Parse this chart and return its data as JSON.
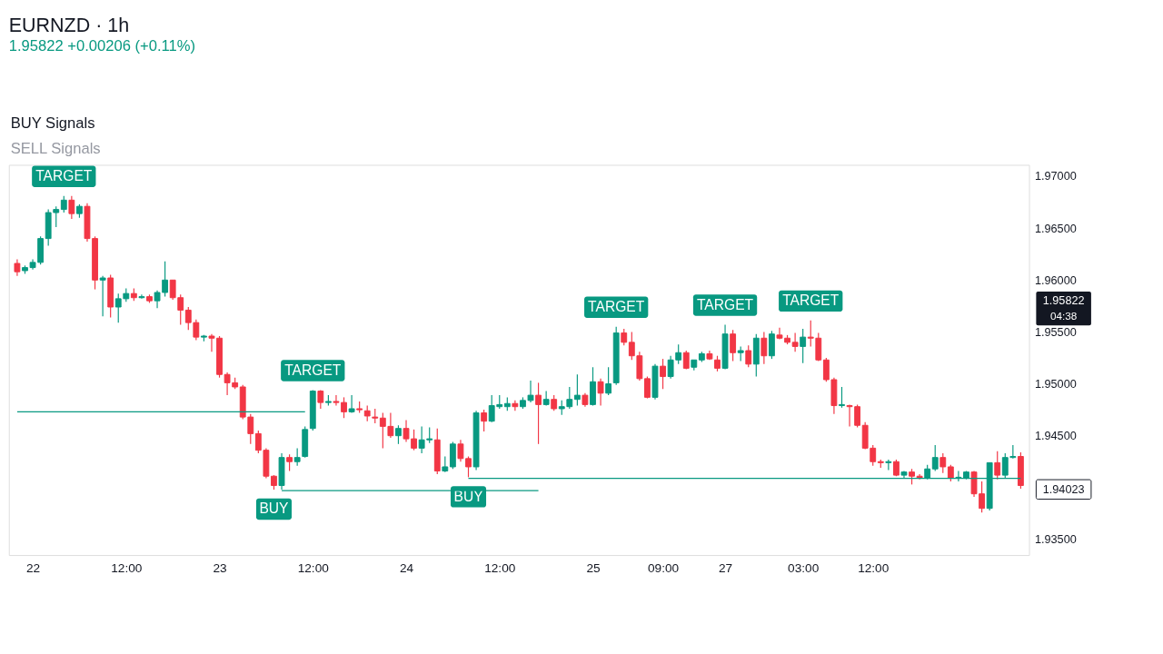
{
  "chart_data": {
    "type": "candlestick",
    "title": "EURNZD · 1h",
    "subtitle": "1.95822 +0.00206 (+0.11%)",
    "categories": [
      null,
      null,
      "22",
      null,
      null,
      null,
      null,
      null,
      null,
      null,
      null,
      null,
      null,
      null,
      "12:00",
      null,
      null,
      null,
      null,
      null,
      null,
      null,
      null,
      null,
      null,
      null,
      "23",
      null,
      null,
      null,
      null,
      null,
      null,
      null,
      null,
      null,
      null,
      null,
      "12:00",
      null,
      null,
      null,
      null,
      null,
      null,
      null,
      null,
      null,
      null,
      null,
      "24",
      null,
      null,
      null,
      null,
      null,
      null,
      null,
      null,
      null,
      null,
      null,
      "12:00",
      null,
      null,
      null,
      null,
      null,
      null,
      null,
      null,
      null,
      null,
      null,
      "25",
      null,
      null,
      null,
      null,
      null,
      null,
      null,
      null,
      "09:00",
      null,
      null,
      null,
      null,
      null,
      null,
      null,
      "27",
      null,
      null,
      null,
      null,
      null,
      null,
      null,
      null,
      null,
      "03:00",
      null,
      null,
      null,
      null,
      null,
      null,
      null,
      null,
      "12:00",
      null,
      null,
      null,
      null,
      null,
      null,
      null,
      null,
      null,
      null,
      null,
      null,
      null,
      null,
      null,
      null,
      null,
      null,
      null
    ],
    "ohlc": [
      [
        1.9616,
        1.962,
        1.9604,
        1.9608
      ],
      [
        1.9609,
        1.9614,
        1.9606,
        1.9612
      ],
      [
        1.9612,
        1.962,
        1.961,
        1.9617
      ],
      [
        1.9617,
        1.9642,
        1.9615,
        1.964
      ],
      [
        1.964,
        1.9668,
        1.9633,
        1.9665
      ],
      [
        1.9665,
        1.9671,
        1.9651,
        1.9668
      ],
      [
        1.9668,
        1.9681,
        1.9665,
        1.9677
      ],
      [
        1.9677,
        1.9681,
        1.9659,
        1.9664
      ],
      [
        1.9664,
        1.9673,
        1.966,
        1.9671
      ],
      [
        1.9671,
        1.9674,
        1.9637,
        1.964
      ],
      [
        1.964,
        1.9642,
        1.9591,
        1.96
      ],
      [
        1.96,
        1.9604,
        1.9565,
        1.9602
      ],
      [
        1.9602,
        1.9605,
        1.9564,
        1.9574
      ],
      [
        1.9574,
        1.9587,
        1.9559,
        1.9582
      ],
      [
        1.9582,
        1.9592,
        1.9579,
        1.9587
      ],
      [
        1.9587,
        1.9592,
        1.958,
        1.9583
      ],
      [
        1.9583,
        1.9586,
        1.9582,
        1.9584
      ],
      [
        1.9584,
        1.9586,
        1.9578,
        1.958
      ],
      [
        1.958,
        1.959,
        1.9573,
        1.9588
      ],
      [
        1.9588,
        1.9618,
        1.9584,
        1.96
      ],
      [
        1.96,
        1.96,
        1.9581,
        1.9583
      ],
      [
        1.9583,
        1.9586,
        1.9557,
        1.9571
      ],
      [
        1.9571,
        1.9574,
        1.9552,
        1.9559
      ],
      [
        1.9559,
        1.9562,
        1.9542,
        1.9545
      ],
      [
        1.9545,
        1.9547,
        1.9541,
        1.9546
      ],
      [
        1.9546,
        1.9548,
        1.9531,
        1.9544
      ],
      [
        1.9544,
        1.9546,
        1.9506,
        1.9509
      ],
      [
        1.9509,
        1.9511,
        1.9489,
        1.9501
      ],
      [
        1.9501,
        1.9506,
        1.9495,
        1.9497
      ],
      [
        1.9497,
        1.9499,
        1.9466,
        1.9468
      ],
      [
        1.9468,
        1.9471,
        1.9442,
        1.9452
      ],
      [
        1.9452,
        1.9455,
        1.9433,
        1.9436
      ],
      [
        1.9436,
        1.9438,
        1.9409,
        1.9411
      ],
      [
        1.9411,
        1.9412,
        1.9398,
        1.9402
      ],
      [
        1.9402,
        1.9433,
        1.9398,
        1.9429
      ],
      [
        1.9429,
        1.9432,
        1.9416,
        1.9425
      ],
      [
        1.9425,
        1.9438,
        1.9421,
        1.9429
      ],
      [
        1.943,
        1.9459,
        1.9429,
        1.9456
      ],
      [
        1.9457,
        1.9494,
        1.9455,
        1.9493
      ],
      [
        1.9493,
        1.9494,
        1.9476,
        1.9482
      ],
      [
        1.9482,
        1.9489,
        1.9479,
        1.9483
      ],
      [
        1.9483,
        1.9489,
        1.9479,
        1.9482
      ],
      [
        1.9482,
        1.9487,
        1.9467,
        1.9473
      ],
      [
        1.9473,
        1.9489,
        1.9472,
        1.9476
      ],
      [
        1.9476,
        1.9483,
        1.9472,
        1.9475
      ],
      [
        1.9474,
        1.9479,
        1.9464,
        1.9469
      ],
      [
        1.9468,
        1.9476,
        1.9462,
        1.9467
      ],
      [
        1.9467,
        1.9472,
        1.9438,
        1.9459
      ],
      [
        1.9459,
        1.9472,
        1.9448,
        1.945
      ],
      [
        1.945,
        1.946,
        1.9442,
        1.9457
      ],
      [
        1.9457,
        1.9465,
        1.9444,
        1.9447
      ],
      [
        1.9447,
        1.9456,
        1.9436,
        1.9438
      ],
      [
        1.9438,
        1.9459,
        1.9433,
        1.9446
      ],
      [
        1.9446,
        1.9458,
        1.9443,
        1.9447
      ],
      [
        1.9446,
        1.9457,
        1.9413,
        1.9416
      ],
      [
        1.9416,
        1.943,
        1.9415,
        1.942
      ],
      [
        1.942,
        1.9444,
        1.9418,
        1.9442
      ],
      [
        1.9442,
        1.9446,
        1.9425,
        1.9428
      ],
      [
        1.9428,
        1.943,
        1.941,
        1.942
      ],
      [
        1.942,
        1.9474,
        1.9417,
        1.9472
      ],
      [
        1.9472,
        1.9475,
        1.9454,
        1.9464
      ],
      [
        1.9464,
        1.9489,
        1.9463,
        1.9479
      ],
      [
        1.9478,
        1.9489,
        1.9476,
        1.948
      ],
      [
        1.9478,
        1.9487,
        1.9474,
        1.9481
      ],
      [
        1.9481,
        1.9484,
        1.9474,
        1.9478
      ],
      [
        1.9478,
        1.9487,
        1.9476,
        1.9484
      ],
      [
        1.9484,
        1.9503,
        1.9482,
        1.9489
      ],
      [
        1.9489,
        1.9501,
        1.9442,
        1.948
      ],
      [
        1.948,
        1.9493,
        1.9479,
        1.9485
      ],
      [
        1.9485,
        1.9489,
        1.9474,
        1.9476
      ],
      [
        1.9476,
        1.9484,
        1.947,
        1.9478
      ],
      [
        1.9478,
        1.9497,
        1.9476,
        1.9485
      ],
      [
        1.9485,
        1.9509,
        1.9479,
        1.9489
      ],
      [
        1.9489,
        1.9491,
        1.9478,
        1.948
      ],
      [
        1.948,
        1.9516,
        1.9479,
        1.9502
      ],
      [
        1.9502,
        1.9505,
        1.9479,
        1.9491
      ],
      [
        1.9491,
        1.9516,
        1.9489,
        1.95
      ],
      [
        1.9501,
        1.9555,
        1.9499,
        1.9549
      ],
      [
        1.9549,
        1.9553,
        1.9537,
        1.954
      ],
      [
        1.954,
        1.955,
        1.9523,
        1.9527
      ],
      [
        1.9527,
        1.9531,
        1.9503,
        1.9505
      ],
      [
        1.9505,
        1.9507,
        1.9486,
        1.9487
      ],
      [
        1.9487,
        1.9519,
        1.9485,
        1.9517
      ],
      [
        1.9517,
        1.9524,
        1.9495,
        1.9507
      ],
      [
        1.9507,
        1.9527,
        1.9505,
        1.9523
      ],
      [
        1.9523,
        1.9538,
        1.9519,
        1.953
      ],
      [
        1.953,
        1.9532,
        1.9514,
        1.9515
      ],
      [
        1.9516,
        1.9523,
        1.9513,
        1.9523
      ],
      [
        1.9523,
        1.9531,
        1.9521,
        1.9529
      ],
      [
        1.9529,
        1.9532,
        1.9523,
        1.9524
      ],
      [
        1.9523,
        1.9527,
        1.9512,
        1.9515
      ],
      [
        1.9515,
        1.9557,
        1.9514,
        1.9548
      ],
      [
        1.9548,
        1.9552,
        1.9522,
        1.953
      ],
      [
        1.953,
        1.9536,
        1.9522,
        1.9532
      ],
      [
        1.9532,
        1.9537,
        1.9516,
        1.9519
      ],
      [
        1.9519,
        1.9548,
        1.9507,
        1.9544
      ],
      [
        1.9544,
        1.955,
        1.9519,
        1.9527
      ],
      [
        1.9527,
        1.9551,
        1.9524,
        1.9548
      ],
      [
        1.9547,
        1.9554,
        1.9543,
        1.9544
      ],
      [
        1.9544,
        1.9547,
        1.9538,
        1.954
      ],
      [
        1.954,
        1.9549,
        1.9531,
        1.9536
      ],
      [
        1.9536,
        1.9553,
        1.952,
        1.9545
      ],
      [
        1.9545,
        1.9561,
        1.9536,
        1.9544
      ],
      [
        1.9544,
        1.9549,
        1.9522,
        1.9523
      ],
      [
        1.9523,
        1.9525,
        1.9502,
        1.9504
      ],
      [
        1.9504,
        1.9506,
        1.9471,
        1.9479
      ],
      [
        1.9479,
        1.9497,
        1.9477,
        1.948
      ],
      [
        1.9479,
        1.948,
        1.9459,
        1.9478
      ],
      [
        1.9478,
        1.948,
        1.9458,
        1.946
      ],
      [
        1.946,
        1.9463,
        1.9437,
        1.9438
      ],
      [
        1.9438,
        1.9441,
        1.9421,
        1.9425
      ],
      [
        1.9425,
        1.9427,
        1.9419,
        1.9424
      ],
      [
        1.9424,
        1.9427,
        1.9417,
        1.9425
      ],
      [
        1.9425,
        1.9427,
        1.9411,
        1.9412
      ],
      [
        1.9412,
        1.9416,
        1.9409,
        1.9415
      ],
      [
        1.9415,
        1.9418,
        1.9403,
        1.9411
      ],
      [
        1.9411,
        1.9413,
        1.9408,
        1.9409
      ],
      [
        1.9409,
        1.9422,
        1.9408,
        1.9418
      ],
      [
        1.9418,
        1.9441,
        1.9416,
        1.9429
      ],
      [
        1.9429,
        1.9433,
        1.9414,
        1.942
      ],
      [
        1.942,
        1.9422,
        1.9406,
        1.9409
      ],
      [
        1.9409,
        1.9416,
        1.9406,
        1.941
      ],
      [
        1.9409,
        1.9416,
        1.9408,
        1.9415
      ],
      [
        1.9415,
        1.9416,
        1.9391,
        1.9394
      ],
      [
        1.9394,
        1.9406,
        1.9376,
        1.938
      ],
      [
        1.938,
        1.9424,
        1.9378,
        1.9424
      ],
      [
        1.9424,
        1.9435,
        1.9408,
        1.9412
      ],
      [
        1.9412,
        1.9433,
        1.9409,
        1.9429
      ],
      [
        1.9429,
        1.9441,
        1.9428,
        1.943
      ],
      [
        1.943,
        1.9434,
        1.9399,
        1.9402
      ]
    ],
    "colors": [
      "#f23645",
      "#089981",
      "#089981",
      "#089981",
      "#089981",
      "#089981",
      "#089981",
      "#f23645",
      "#089981",
      "#f23645",
      "#f23645",
      "#089981",
      "#f23645",
      "#089981",
      "#089981",
      "#f23645",
      "#089981",
      "#f23645",
      "#089981",
      "#089981",
      "#f23645",
      "#f23645",
      "#f23645",
      "#f23645",
      "#089981",
      "#f23645",
      "#f23645",
      "#f23645",
      "#f23645",
      "#f23645",
      "#f23645",
      "#f23645",
      "#f23645",
      "#f23645",
      "#089981",
      "#f23645",
      "#089981",
      "#089981",
      "#089981",
      "#f23645",
      "#089981",
      "#f23645",
      "#f23645",
      "#089981",
      "#f23645",
      "#f23645",
      "#f23645",
      "#f23645",
      "#f23645",
      "#089981",
      "#f23645",
      "#f23645",
      "#089981",
      "#089981",
      "#f23645",
      "#089981",
      "#089981",
      "#f23645",
      "#f23645",
      "#089981",
      "#f23645",
      "#089981",
      "#089981",
      "#089981",
      "#f23645",
      "#089981",
      "#089981",
      "#f23645",
      "#089981",
      "#f23645",
      "#089981",
      "#089981",
      "#089981",
      "#f23645",
      "#089981",
      "#f23645",
      "#089981",
      "#089981",
      "#f23645",
      "#f23645",
      "#f23645",
      "#f23645",
      "#089981",
      "#f23645",
      "#089981",
      "#089981",
      "#f23645",
      "#089981",
      "#089981",
      "#f23645",
      "#f23645",
      "#089981",
      "#f23645",
      "#089981",
      "#f23645",
      "#089981",
      "#f23645",
      "#089981",
      "#f23645",
      "#f23645",
      "#f23645",
      "#089981",
      "#f23645",
      "#f23645",
      "#f23645",
      "#f23645",
      "#089981",
      "#f23645",
      "#f23645",
      "#f23645",
      "#f23645",
      "#f23645",
      "#089981",
      "#f23645",
      "#089981",
      "#f23645",
      "#f23645",
      "#089981",
      "#089981",
      "#f23645",
      "#f23645",
      "#089981",
      "#089981",
      "#f23645",
      "#f23645",
      "#089981",
      "#f23645",
      "#089981",
      "#089981",
      "#f23645"
    ],
    "series": [
      {
        "type": "line",
        "color": "#089981",
        "values": [
          1.9473,
          1.9473,
          1.9473,
          1.9473,
          1.9473,
          1.9473,
          1.9473,
          1.9473,
          1.9473,
          1.9473,
          1.9473,
          1.9473,
          1.9473,
          1.9473,
          1.9473,
          1.9473,
          1.9473,
          1.9473,
          1.9473,
          1.9473,
          1.9473,
          1.9473,
          1.9473,
          1.9473,
          1.9473,
          1.9473,
          1.9473,
          1.9473,
          1.9473,
          1.9473,
          1.9473,
          1.9473,
          1.9473,
          1.9473,
          1.9473,
          1.9473,
          1.9473,
          1.9473,
          null,
          null,
          null,
          null,
          null,
          null,
          null,
          null,
          null,
          null,
          null,
          null,
          null,
          null,
          null,
          null,
          null,
          null,
          null,
          null,
          null,
          null,
          null,
          null,
          null,
          null,
          null,
          null,
          null,
          null,
          null,
          null,
          null,
          null,
          null,
          null,
          null,
          null,
          null,
          null,
          null,
          null,
          null,
          null,
          null,
          null,
          null,
          null,
          null,
          null,
          null,
          null,
          null,
          null,
          null,
          null,
          null,
          null,
          null,
          null,
          null,
          null,
          null,
          null,
          null,
          null,
          null,
          null,
          null,
          null,
          null,
          null,
          null,
          null,
          null,
          null,
          null,
          null,
          null,
          null,
          null,
          null,
          null,
          null,
          null,
          null,
          null,
          null,
          null,
          null,
          null,
          null
        ]
      },
      {
        "type": "line",
        "color": "#089981",
        "values": [
          null,
          null,
          null,
          null,
          null,
          null,
          null,
          null,
          null,
          null,
          null,
          null,
          null,
          null,
          null,
          null,
          null,
          null,
          null,
          null,
          null,
          null,
          null,
          null,
          null,
          null,
          null,
          null,
          null,
          null,
          null,
          null,
          null,
          null,
          1.9397,
          1.9397,
          1.9397,
          1.9397,
          1.9397,
          1.9397,
          1.9397,
          1.9397,
          1.9397,
          1.9397,
          1.9397,
          1.9397,
          1.9397,
          1.9397,
          1.9397,
          1.9397,
          1.9397,
          1.9397,
          1.9397,
          1.9397,
          1.9397,
          1.9397,
          1.9397,
          1.9397,
          1.9397,
          1.9397,
          1.9397,
          1.9397,
          1.9397,
          1.9397,
          1.9397,
          1.9397,
          1.9397,
          1.9397,
          null,
          null,
          null,
          null,
          null,
          null,
          null,
          null,
          null,
          null,
          null,
          null,
          null,
          null,
          null,
          null,
          null,
          null,
          null,
          null,
          null,
          null,
          null,
          null,
          null,
          null,
          null,
          null,
          null,
          null,
          null,
          null,
          null,
          null,
          null,
          null,
          null,
          null,
          null,
          null,
          null,
          null,
          null,
          null,
          null,
          null,
          null,
          null,
          null,
          null,
          null,
          null,
          null,
          null,
          null,
          null,
          null,
          null,
          null,
          null,
          null,
          null
        ]
      },
      {
        "type": "line",
        "color": "#089981",
        "values": [
          null,
          null,
          null,
          null,
          null,
          null,
          null,
          null,
          null,
          null,
          null,
          null,
          null,
          null,
          null,
          null,
          null,
          null,
          null,
          null,
          null,
          null,
          null,
          null,
          null,
          null,
          null,
          null,
          null,
          null,
          null,
          null,
          null,
          null,
          null,
          null,
          null,
          null,
          null,
          null,
          null,
          null,
          null,
          null,
          null,
          null,
          null,
          null,
          null,
          null,
          null,
          null,
          null,
          null,
          null,
          null,
          null,
          null,
          1.9409,
          1.9409,
          1.9409,
          1.9409,
          1.9409,
          1.9409,
          1.9409,
          1.9409,
          1.9409,
          1.9409,
          1.9409,
          1.9409,
          1.9409,
          1.9409,
          1.9409,
          1.9409,
          1.9409,
          1.9409,
          1.9409,
          1.9409,
          1.9409,
          1.9409,
          1.9409,
          1.9409,
          1.9409,
          1.9409,
          1.9409,
          1.9409,
          1.9409,
          1.9409,
          1.9409,
          1.9409,
          1.9409,
          1.9409,
          1.9409,
          1.9409,
          1.9409,
          1.9409,
          1.9409,
          1.9409,
          1.9409,
          1.9409,
          1.9409,
          1.9409,
          1.9409,
          1.9409,
          1.9409,
          1.9409,
          1.9409,
          1.9409,
          1.9409,
          1.9409,
          1.9409,
          1.9409,
          1.9409,
          1.9409,
          1.9409,
          1.9409,
          1.9409,
          1.9409,
          1.9409,
          1.9409,
          1.9409,
          1.9409,
          1.9409,
          1.9409,
          1.9409,
          1.9409,
          1.9409,
          1.9409,
          1.9409,
          1.9409
        ]
      }
    ],
    "ylim": [
      1.9335,
      1.9711
    ],
    "yticks": [
      {
        "value": 1.935,
        "label": "1.93500"
      },
      {
        "value": 1.945,
        "label": "1.94500"
      },
      {
        "value": 1.95,
        "label": "1.95000"
      },
      {
        "value": 1.955,
        "label": "1.95500"
      },
      {
        "value": 1.96,
        "label": "1.96000"
      },
      {
        "value": 1.965,
        "label": "1.96500"
      },
      {
        "value": 1.97,
        "label": "1.97000"
      }
    ],
    "annotations": [
      "BUY Signals",
      "SELL Signals",
      "1.95822",
      "04:38",
      "1.94023",
      {
        "text": "TARGET",
        "y": 1.9681
      },
      {
        "text": "TARGET",
        "y": 1.9494
      },
      {
        "text": "TARGET",
        "y": 1.9555
      },
      {
        "text": "TARGET",
        "y": 1.9557
      },
      {
        "text": "TARGET",
        "y": 1.9561
      },
      {
        "text": "BUY",
        "y": 1.9398
      },
      {
        "text": "BUY",
        "y": 1.941
      }
    ]
  }
}
